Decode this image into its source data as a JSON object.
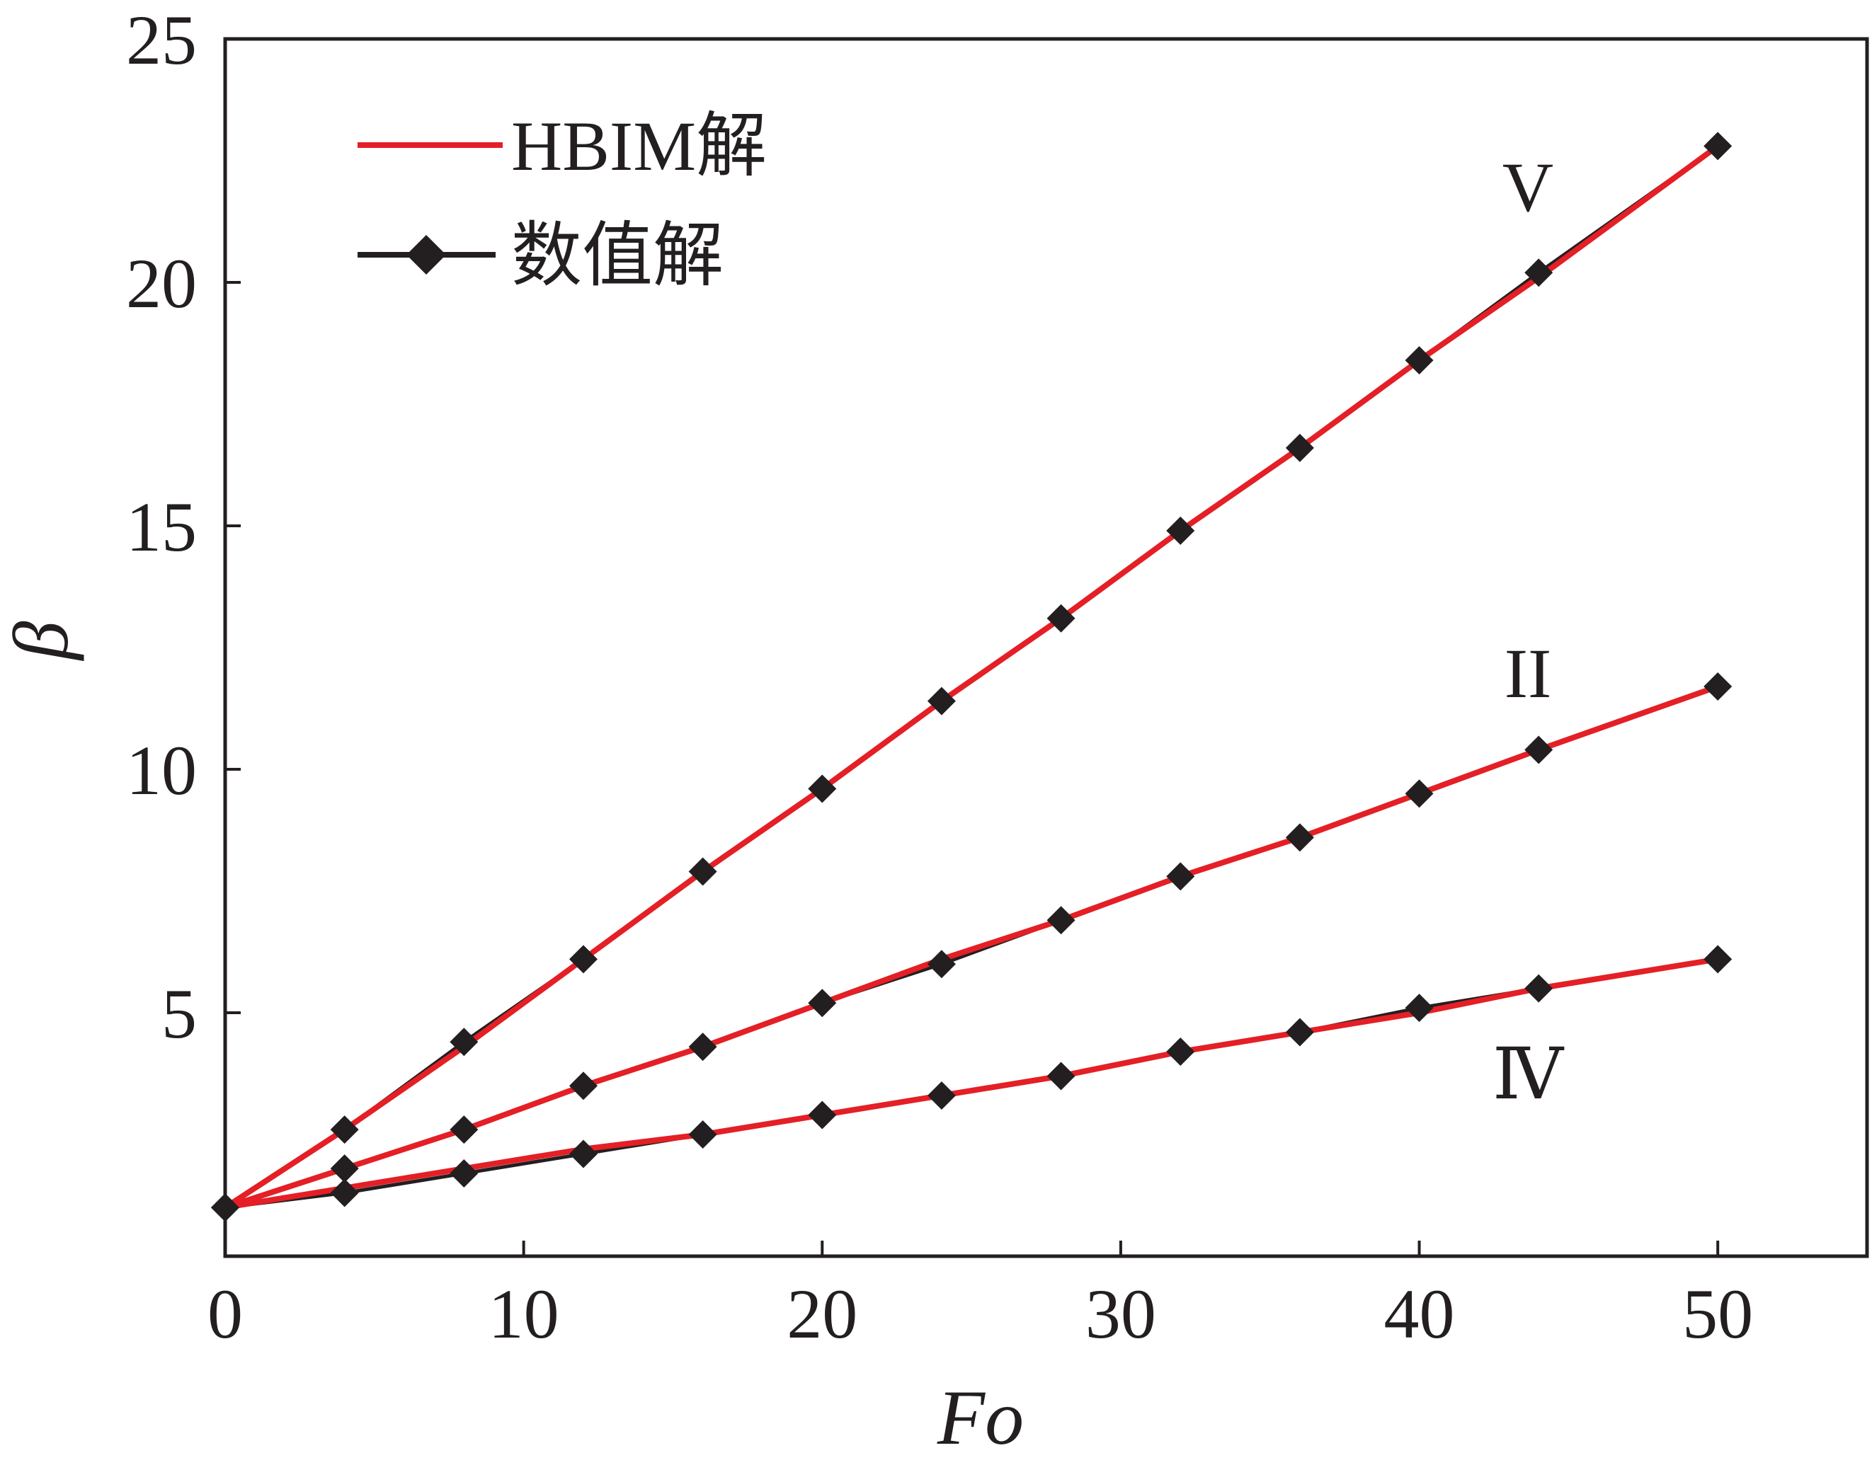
{
  "chart_data": {
    "type": "line",
    "xlabel": "Fo",
    "ylabel": "β",
    "xlim": [
      0,
      55
    ],
    "ylim": [
      0,
      25
    ],
    "xticks": [
      0,
      10,
      20,
      30,
      40,
      50
    ],
    "yticks": [
      5,
      10,
      15,
      20,
      25
    ],
    "x_tick_labels": [
      "0",
      "10",
      "20",
      "30",
      "40",
      "50"
    ],
    "y_tick_labels": [
      "5",
      "10",
      "15",
      "20",
      "25"
    ],
    "legend": {
      "position": "top-left",
      "entries": [
        {
          "label": "HBIM解",
          "style": "red-line"
        },
        {
          "label": "数值解",
          "style": "black-line-diamond"
        }
      ]
    },
    "colors": {
      "hbim": "#e41f26",
      "numerical": "#231f20",
      "axis": "#231f20"
    },
    "curves": [
      {
        "label": "V",
        "hbim_x": [
          0,
          4,
          8,
          12,
          16,
          20,
          24,
          28,
          32,
          36,
          40,
          44,
          50
        ],
        "hbim_y": [
          1.0,
          2.6,
          4.3,
          6.1,
          7.9,
          9.6,
          11.4,
          13.1,
          14.9,
          16.6,
          18.4,
          20.1,
          22.8
        ],
        "num_x": [
          0,
          4,
          8,
          12,
          16,
          20,
          24,
          28,
          32,
          36,
          40,
          44,
          50
        ],
        "num_y": [
          1.0,
          2.6,
          4.4,
          6.1,
          7.9,
          9.6,
          11.4,
          13.1,
          14.9,
          16.6,
          18.4,
          20.2,
          22.8
        ]
      },
      {
        "label": "II",
        "hbim_x": [
          0,
          4,
          8,
          12,
          16,
          20,
          24,
          28,
          32,
          36,
          40,
          44,
          50
        ],
        "hbim_y": [
          1.0,
          1.8,
          2.6,
          3.5,
          4.3,
          5.2,
          6.1,
          6.9,
          7.8,
          8.6,
          9.5,
          10.4,
          11.7
        ],
        "num_x": [
          0,
          4,
          8,
          12,
          16,
          20,
          24,
          28,
          32,
          36,
          40,
          44,
          50
        ],
        "num_y": [
          1.0,
          1.8,
          2.6,
          3.5,
          4.3,
          5.2,
          6.0,
          6.9,
          7.8,
          8.6,
          9.5,
          10.4,
          11.7
        ]
      },
      {
        "label": "Ⅳ",
        "hbim_x": [
          0,
          4,
          8,
          12,
          16,
          20,
          24,
          28,
          32,
          36,
          40,
          44,
          50
        ],
        "hbim_y": [
          1.0,
          1.4,
          1.8,
          2.2,
          2.5,
          2.9,
          3.3,
          3.7,
          4.2,
          4.6,
          5.0,
          5.5,
          6.1
        ],
        "num_x": [
          0,
          4,
          8,
          12,
          16,
          20,
          24,
          28,
          32,
          36,
          40,
          44,
          50
        ],
        "num_y": [
          1.0,
          1.3,
          1.7,
          2.1,
          2.5,
          2.9,
          3.3,
          3.7,
          4.2,
          4.6,
          5.1,
          5.5,
          6.1
        ]
      }
    ]
  }
}
